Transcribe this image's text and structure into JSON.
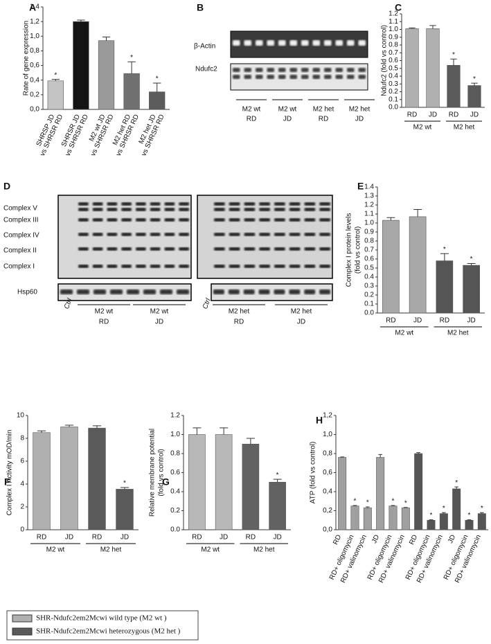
{
  "chart_data": [
    {
      "type": "bar",
      "panel": "A",
      "ylabel": "Rate of gene expression",
      "categories": [
        [
          "SHRSP JD",
          "vs SHRSR RD"
        ],
        [
          "SHRSR JD",
          "vs SHRSR RD"
        ],
        [
          "M2 wt JD",
          "vs SHRSR RD"
        ],
        [
          "M2 het RD",
          "vs SHRSR RD"
        ],
        [
          "M2 het JD",
          "vs SHRSR RD"
        ]
      ],
      "values": [
        0.39,
        1.2,
        0.94,
        0.49,
        0.24
      ],
      "errors": [
        0.02,
        0.02,
        0.05,
        0.16,
        0.12
      ],
      "colors": [
        "#c4c4c4",
        "#141414",
        "#9a9a9a",
        "#707070",
        "#5c5c5c"
      ],
      "significance": [
        "*",
        null,
        null,
        "*",
        "*"
      ],
      "ylim": [
        0,
        1.4
      ],
      "yticks": [
        {
          "value": 0,
          "label": "0,0"
        },
        {
          "value": 0.2,
          "label": "0,2"
        },
        {
          "value": 0.4,
          "label": "0,4"
        },
        {
          "value": 0.6,
          "label": "0,6"
        },
        {
          "value": 0.8,
          "label": "0,8"
        },
        {
          "value": 1.0,
          "label": "1,0"
        },
        {
          "value": 1.2,
          "label": "1,2"
        },
        {
          "value": 1.4,
          "label": "1,4"
        }
      ]
    },
    {
      "type": "bar",
      "panel": "C",
      "ylabel": "Ndufc2  (fold vs  control)",
      "categories": [
        "RD",
        "JD",
        "RD",
        "JD"
      ],
      "groups": [
        "M2 wt",
        "M2 het"
      ],
      "values": [
        1.01,
        1.01,
        0.54,
        0.28
      ],
      "errors": [
        0.01,
        0.04,
        0.08,
        0.03
      ],
      "colors": [
        "#b0b0b0",
        "#b0b0b0",
        "#5a5a5a",
        "#5a5a5a"
      ],
      "significance": [
        null,
        null,
        "*",
        "*"
      ],
      "ylim": [
        0,
        1.2
      ],
      "yticks": [
        {
          "value": 0,
          "label": "0.0"
        },
        0.1,
        0.2,
        0.3,
        0.4,
        0.5,
        0.6,
        0.7,
        0.8,
        0.9,
        {
          "value": 1.0,
          "label": "1.0"
        },
        1.1,
        1.2
      ]
    },
    {
      "type": "bar",
      "panel": "E",
      "ylabel": [
        "Complex I  protein levels",
        "(fold vs  control)"
      ],
      "categories": [
        "RD",
        "JD",
        "RD",
        "JD"
      ],
      "groups": [
        "M2 wt",
        "M2 het"
      ],
      "values": [
        1.03,
        1.07,
        0.58,
        0.53
      ],
      "errors": [
        0.03,
        0.08,
        0.08,
        0.02
      ],
      "colors": [
        "#a8a8a8",
        "#a8a8a8",
        "#555555",
        "#555555"
      ],
      "significance": [
        null,
        null,
        "*",
        "*"
      ],
      "ylim": [
        0,
        1.4
      ],
      "yticks": [
        {
          "value": 0,
          "label": "0.0"
        },
        0.1,
        0.2,
        0.3,
        0.4,
        0.5,
        0.6,
        0.7,
        0.8,
        0.9,
        {
          "value": 1.0,
          "label": "1.0"
        },
        1.1,
        1.2,
        1.3,
        1.4
      ]
    },
    {
      "type": "bar",
      "panel": "F",
      "ylabel": "Complex I Activity mOD/min",
      "categories": [
        "RD",
        "JD",
        "RD",
        "JD"
      ],
      "groups": [
        "M2 wt",
        "M2 het"
      ],
      "values": [
        8.5,
        9.0,
        8.9,
        3.55
      ],
      "errors": [
        0.15,
        0.15,
        0.2,
        0.15
      ],
      "colors": [
        "#b0b0b0",
        "#b0b0b0",
        "#5a5a5a",
        "#5a5a5a"
      ],
      "significance": [
        null,
        null,
        null,
        "*"
      ],
      "ylim": [
        0,
        10
      ],
      "yticks": [
        0,
        2,
        4,
        6,
        8,
        10
      ]
    },
    {
      "type": "bar",
      "panel": "G",
      "ylabel": [
        "Relative membrane potential",
        "(fold vs control)"
      ],
      "categories": [
        "RD",
        "JD",
        "RD",
        "JD"
      ],
      "groups": [
        "M2 wt",
        "M2 het"
      ],
      "values": [
        1.0,
        1.0,
        0.9,
        0.5
      ],
      "errors": [
        0.07,
        0.07,
        0.06,
        0.03
      ],
      "colors": [
        "#b8b8b8",
        "#b8b8b8",
        "#626262",
        "#626262"
      ],
      "significance": [
        null,
        null,
        null,
        "*"
      ],
      "ylim": [
        0,
        1.2
      ],
      "yticks": [
        {
          "value": 0,
          "label": "0.0"
        },
        0.2,
        0.4,
        0.6,
        0.8,
        {
          "value": 1.0,
          "label": "1.0"
        },
        1.2
      ]
    },
    {
      "type": "bar",
      "panel": "H",
      "ylabel": "ATP  (fold vs  control)",
      "categories": [
        "RD",
        "RD+  oligomycin",
        "RD+ valinomycin",
        "JD",
        "RD+  oligomycin",
        "RD+ valinomycin",
        "RD",
        "RD+  oligomycin",
        "RD+ valinomycin",
        "JD",
        "RD+  oligomycin",
        "RD+ valinomycin"
      ],
      "values": [
        0.76,
        0.25,
        0.23,
        0.76,
        0.25,
        0.23,
        0.8,
        0.1,
        0.17,
        0.43,
        0.1,
        0.17
      ],
      "errors": [
        0.005,
        0.005,
        0.01,
        0.03,
        0.005,
        0.005,
        0.01,
        0.005,
        0.01,
        0.02,
        0.005,
        0.01
      ],
      "colors": [
        "#a0a0a0",
        "#a0a0a0",
        "#a0a0a0",
        "#a0a0a0",
        "#a0a0a0",
        "#a0a0a0",
        "#555555",
        "#555555",
        "#555555",
        "#555555",
        "#555555",
        "#555555"
      ],
      "significance": [
        null,
        "*",
        "*",
        null,
        "*",
        "*",
        null,
        "*",
        "*",
        "*",
        "*",
        "*"
      ],
      "ylim": [
        0,
        1.2
      ],
      "yticks": [
        {
          "value": 0,
          "label": "0,0"
        },
        {
          "value": 0.2,
          "label": "0,2"
        },
        {
          "value": 0.4,
          "label": "0,4"
        },
        {
          "value": 0.6,
          "label": "0,6"
        },
        {
          "value": 0.8,
          "label": "0,8"
        },
        {
          "value": 1.0,
          "label": "1,0"
        },
        {
          "value": 1.2,
          "label": "1,2"
        }
      ]
    }
  ],
  "blot_b": {
    "panel": "B",
    "rows": [
      "β-Actin",
      "Ndufc2"
    ],
    "lanes": [
      [
        "M2 wt",
        "RD"
      ],
      [
        "M2 wt",
        "JD"
      ],
      [
        "M2 het",
        "RD"
      ],
      [
        "M2 het",
        "JD"
      ]
    ]
  },
  "blot_d": {
    "panel": "D",
    "rows": [
      "Complex V",
      "Complex III",
      "Complex IV",
      "Complex II",
      "Complex  I"
    ],
    "loading": "Hsp60",
    "ctrl": [
      "Ctrl",
      "Ctrl"
    ],
    "lanes": [
      [
        "M2 wt",
        "RD"
      ],
      [
        "M2  wt",
        "JD"
      ],
      [
        "M2  het",
        "RD"
      ],
      [
        "M2  het",
        "JD"
      ]
    ]
  },
  "legend": [
    "SHR-Ndufc2em2Mcwi wild type (M2  wt )",
    "SHR-Ndufc2em2Mcwi heterozygous (M2  het )"
  ]
}
